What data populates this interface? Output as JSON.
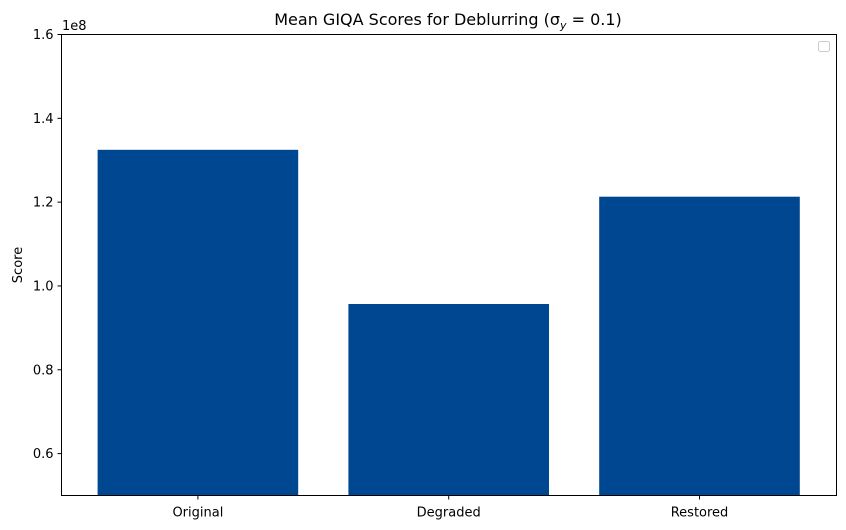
{
  "chart_data": {
    "type": "bar",
    "title": "Mean GIQA Scores for Deblurring (σ",
    "title_sub": "y",
    "title_tail": " = 0.1)",
    "ylabel": "Score",
    "xlabel": "",
    "offset_label": "1e8",
    "categories": [
      "Original",
      "Degraded",
      "Restored"
    ],
    "values": [
      1.325,
      0.957,
      1.213
    ],
    "value_scale": 100000000,
    "ylim": [
      0.5,
      1.6
    ],
    "yticks": [
      0.6,
      0.8,
      1.0,
      1.2,
      1.4,
      1.6
    ],
    "ytick_labels": [
      "0.6",
      "0.8",
      "1.0",
      "1.2",
      "1.4",
      "1.6"
    ],
    "bar_color": "#004791",
    "grid": false,
    "legend": "empty box, top-right"
  }
}
